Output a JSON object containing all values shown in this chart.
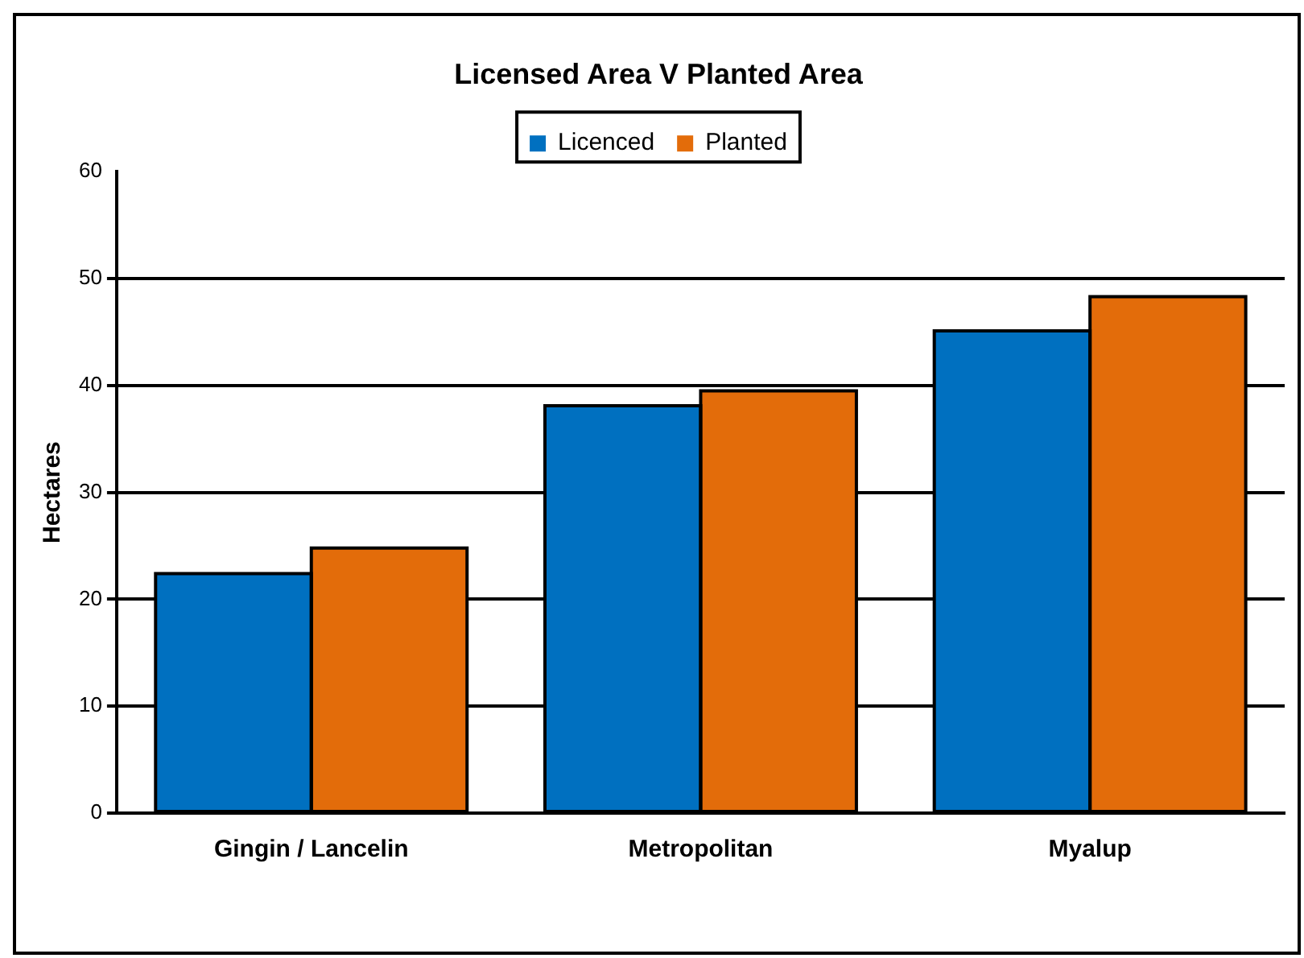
{
  "chart_data": {
    "type": "bar",
    "title": "Licensed Area V Planted Area",
    "ylabel": "Hectares",
    "categories": [
      "Gingin / Lancelin",
      "Metropolitan",
      "Myalup"
    ],
    "series": [
      {
        "name": "Licenced",
        "color": "#0070c0",
        "values": [
          22.4,
          38.1,
          45.1
        ]
      },
      {
        "name": "Planted",
        "color": "#e36c0a",
        "values": [
          24.8,
          39.5,
          48.3
        ]
      }
    ],
    "ylim": [
      0,
      60
    ],
    "yticks": [
      0,
      10,
      20,
      30,
      40,
      50,
      60
    ],
    "grid": "y",
    "legend": "top"
  }
}
